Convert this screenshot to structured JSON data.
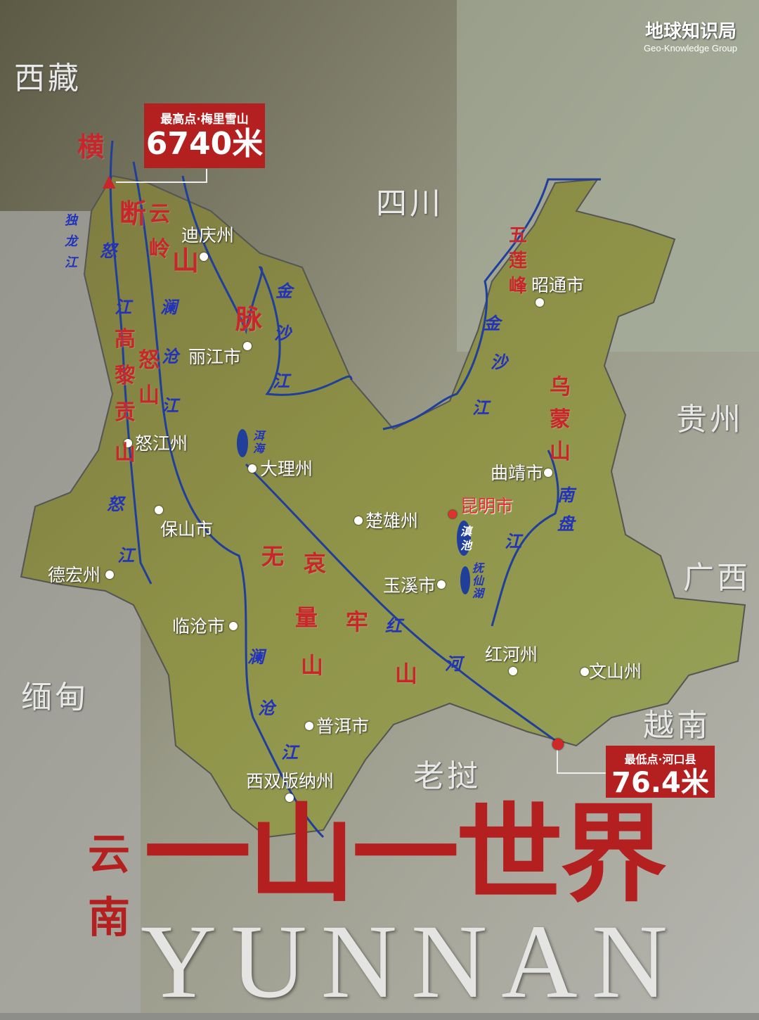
{
  "brand": {
    "name": "地球知识局",
    "subtitle": "Geo-Knowledge Group"
  },
  "regions": [
    "西藏",
    "四川",
    "贵州",
    "广西",
    "缅甸",
    "越南",
    "老挝"
  ],
  "highest": {
    "label": "最高点·梅里雪山",
    "value": "6740米"
  },
  "lowest": {
    "label": "最低点·河口县",
    "value": "76.4米"
  },
  "cities": [
    "迪庆州",
    "丽江市",
    "怒江州",
    "大理州",
    "保山市",
    "德宏州",
    "临沧市",
    "楚雄州",
    "昆明市",
    "玉溪市",
    "曲靖市",
    "昭通市",
    "红河州",
    "文山州",
    "普洱市",
    "西双版纳州"
  ],
  "mountains": [
    "横",
    "断",
    "山",
    "脉",
    "云",
    "岭",
    "高",
    "黎",
    "贡",
    "山",
    "怒",
    "山",
    "无",
    "量",
    "山",
    "哀",
    "牢",
    "山",
    "乌",
    "蒙",
    "山",
    "五",
    "莲",
    "峰"
  ],
  "rivers": [
    "独",
    "龙",
    "江",
    "怒",
    "江",
    "澜",
    "沧",
    "江",
    "金",
    "沙",
    "江",
    "洱",
    "海",
    "怒",
    "江",
    "滇",
    "池",
    "抚",
    "仙",
    "湖",
    "金",
    "沙",
    "江",
    "南",
    "盘",
    "江",
    "红",
    "河",
    "澜",
    "沧",
    "江"
  ],
  "title": {
    "side": "云南",
    "main": "一山一世界",
    "english": "YUNNAN"
  },
  "colors": {
    "accent": "#b3201f",
    "river": "#1f3f9a",
    "capital": "#e03030"
  }
}
